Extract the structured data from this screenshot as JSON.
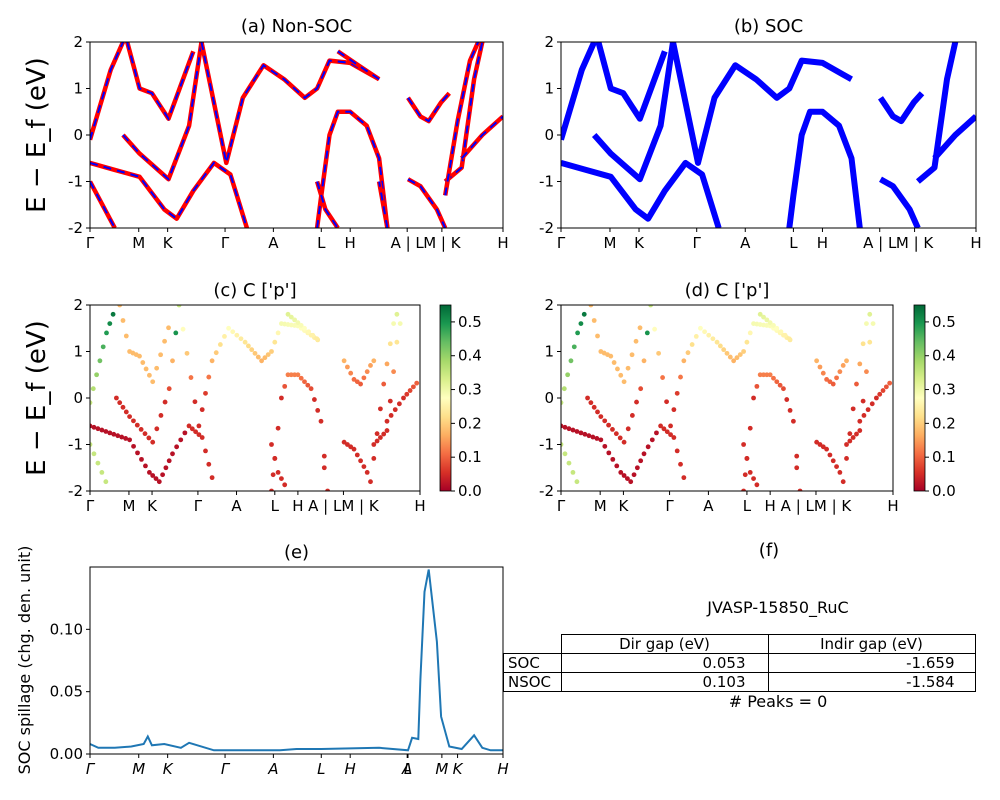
{
  "figure": {
    "ylabel_energy": "E − E_f (eV)",
    "ylabel_spillage": "SOC spillage (chg. den. unit)",
    "kpath_labels_full": [
      "Γ",
      "M",
      "K",
      "Γ",
      "A",
      "L",
      "H",
      "A | L",
      "M | K",
      "H"
    ],
    "kpath_labels_proj": [
      "Γ",
      "M",
      "K",
      "Γ",
      "A",
      "L",
      "H",
      "A | LM | K",
      "H"
    ],
    "kpath_labels_spill": [
      "Γ",
      "M",
      "K",
      "Γ",
      "A",
      "L",
      "H",
      "A",
      "L",
      "M",
      "K",
      "H"
    ]
  },
  "colors": {
    "nonsoc_line": "#ff0000",
    "nonsoc_dash": "#0000ff",
    "soc_line": "#0000ff",
    "spillage_line": "#1f77b4",
    "colormap": "RdYlGn"
  },
  "chart_data": [
    {
      "id": "a",
      "type": "line",
      "title": "(a) Non-SOC",
      "ylabel": "E − E_f (eV)",
      "ylim": [
        -2,
        2
      ],
      "yticks": [
        -2,
        -1,
        0,
        1,
        2
      ],
      "xticks": [
        "Γ",
        "M",
        "K",
        "Γ",
        "A",
        "L",
        "H",
        "A | L",
        "M | K",
        "H"
      ],
      "series": [
        {
          "values": [
            [
              0,
              -0.1
            ],
            [
              0.05,
              1.4
            ],
            [
              0.08,
              2.0
            ]
          ]
        },
        {
          "values": [
            [
              0.09,
              2.0
            ],
            [
              0.12,
              1.0
            ],
            [
              0.15,
              0.9
            ],
            [
              0.19,
              0.35
            ],
            [
              0.25,
              1.8
            ]
          ]
        },
        {
          "values": [
            [
              0,
              -0.6
            ],
            [
              0.06,
              -0.75
            ],
            [
              0.12,
              -0.9
            ],
            [
              0.18,
              -1.6
            ],
            [
              0.21,
              -1.8
            ],
            [
              0.25,
              -1.2
            ],
            [
              0.3,
              -0.6
            ],
            [
              0.34,
              -0.85
            ],
            [
              0.38,
              -2.0
            ]
          ]
        },
        {
          "values": [
            [
              0,
              -1.0
            ],
            [
              0.06,
              -2.0
            ]
          ]
        },
        {
          "values": [
            [
              0.08,
              0.0
            ],
            [
              0.12,
              -0.4
            ],
            [
              0.19,
              -0.95
            ],
            [
              0.24,
              0.2
            ],
            [
              0.27,
              2.0
            ]
          ]
        },
        {
          "values": [
            [
              0.27,
              2.0
            ],
            [
              0.33,
              -0.6
            ],
            [
              0.37,
              0.8
            ],
            [
              0.42,
              1.5
            ],
            [
              0.47,
              1.2
            ],
            [
              0.52,
              0.8
            ],
            [
              0.55,
              1.0
            ],
            [
              0.58,
              1.6
            ],
            [
              0.63,
              1.55
            ],
            [
              0.68,
              1.3
            ],
            [
              0.7,
              1.2
            ]
          ]
        },
        {
          "values": [
            [
              0.55,
              -2.0
            ],
            [
              0.56,
              -1.3
            ],
            [
              0.58,
              0.0
            ],
            [
              0.6,
              0.5
            ],
            [
              0.63,
              0.5
            ],
            [
              0.67,
              0.2
            ],
            [
              0.7,
              -0.5
            ],
            [
              0.72,
              -2.0
            ]
          ]
        },
        {
          "values": [
            [
              0.55,
              -1.0
            ],
            [
              0.57,
              -1.6
            ],
            [
              0.6,
              -2.0
            ]
          ]
        },
        {
          "values": [
            [
              0.6,
              1.8
            ],
            [
              0.65,
              1.5
            ],
            [
              0.7,
              1.2
            ]
          ]
        },
        {
          "values": [
            [
              0.72,
              -2.0
            ],
            [
              0.7,
              -1.0
            ]
          ]
        },
        {
          "values": [
            [
              0.77,
              -0.95
            ],
            [
              0.8,
              -1.1
            ],
            [
              0.84,
              -1.6
            ],
            [
              0.86,
              -2.0
            ]
          ]
        },
        {
          "values": [
            [
              0.77,
              0.8
            ],
            [
              0.8,
              0.4
            ],
            [
              0.82,
              0.3
            ],
            [
              0.85,
              0.7
            ],
            [
              0.87,
              0.9
            ]
          ]
        },
        {
          "values": [
            [
              0.86,
              -1.0
            ],
            [
              0.9,
              -0.7
            ],
            [
              0.93,
              1.2
            ],
            [
              0.95,
              2.0
            ]
          ]
        },
        {
          "values": [
            [
              0.9,
              -0.5
            ],
            [
              0.95,
              0.0
            ],
            [
              1.0,
              0.4
            ]
          ]
        },
        {
          "values": [
            [
              0.86,
              -1.3
            ],
            [
              0.89,
              0.3
            ],
            [
              0.92,
              1.6
            ],
            [
              0.94,
              2.0
            ]
          ]
        }
      ]
    },
    {
      "id": "b",
      "type": "line",
      "title": "(b) SOC",
      "ylim": [
        -2,
        2
      ],
      "yticks": [
        -2,
        -1,
        0,
        1,
        2
      ],
      "xticks": [
        "Γ",
        "M",
        "K",
        "Γ",
        "A",
        "L",
        "H",
        "A | L",
        "M | K",
        "H"
      ],
      "series": [
        {
          "values": [
            [
              0,
              -0.1
            ],
            [
              0.05,
              1.4
            ],
            [
              0.08,
              2.0
            ]
          ]
        },
        {
          "values": [
            [
              0.09,
              2.0
            ],
            [
              0.12,
              1.0
            ],
            [
              0.15,
              0.9
            ],
            [
              0.19,
              0.35
            ],
            [
              0.25,
              1.8
            ]
          ]
        },
        {
          "values": [
            [
              0,
              -0.6
            ],
            [
              0.06,
              -0.75
            ],
            [
              0.12,
              -0.9
            ],
            [
              0.18,
              -1.6
            ],
            [
              0.21,
              -1.8
            ],
            [
              0.25,
              -1.2
            ],
            [
              0.3,
              -0.6
            ],
            [
              0.34,
              -0.85
            ],
            [
              0.38,
              -2.0
            ]
          ]
        },
        {
          "values": [
            [
              0.08,
              0.0
            ],
            [
              0.12,
              -0.4
            ],
            [
              0.19,
              -0.95
            ],
            [
              0.24,
              0.2
            ],
            [
              0.27,
              2.0
            ]
          ]
        },
        {
          "values": [
            [
              0.27,
              2.0
            ],
            [
              0.33,
              -0.6
            ],
            [
              0.37,
              0.8
            ],
            [
              0.42,
              1.5
            ],
            [
              0.47,
              1.2
            ],
            [
              0.52,
              0.8
            ],
            [
              0.55,
              1.0
            ],
            [
              0.58,
              1.6
            ],
            [
              0.63,
              1.55
            ],
            [
              0.68,
              1.3
            ],
            [
              0.7,
              1.2
            ]
          ]
        },
        {
          "values": [
            [
              0.55,
              -2.0
            ],
            [
              0.56,
              -1.3
            ],
            [
              0.58,
              0.0
            ],
            [
              0.6,
              0.5
            ],
            [
              0.63,
              0.5
            ],
            [
              0.67,
              0.2
            ],
            [
              0.7,
              -0.5
            ],
            [
              0.72,
              -2.0
            ]
          ]
        },
        {
          "values": [
            [
              0.77,
              0.8
            ],
            [
              0.8,
              0.4
            ],
            [
              0.82,
              0.3
            ],
            [
              0.85,
              0.7
            ],
            [
              0.87,
              0.9
            ]
          ]
        },
        {
          "values": [
            [
              0.77,
              -0.95
            ],
            [
              0.8,
              -1.1
            ],
            [
              0.84,
              -1.6
            ],
            [
              0.86,
              -2.0
            ]
          ]
        },
        {
          "values": [
            [
              0.86,
              -1.0
            ],
            [
              0.9,
              -0.7
            ],
            [
              0.93,
              1.2
            ],
            [
              0.95,
              2.0
            ]
          ]
        },
        {
          "values": [
            [
              0.9,
              -0.5
            ],
            [
              0.95,
              0.0
            ],
            [
              1.0,
              0.4
            ]
          ]
        }
      ]
    },
    {
      "id": "c",
      "type": "scatter",
      "title": "(c)  C ['p']",
      "ylim": [
        -2,
        2
      ],
      "yticks": [
        -2,
        -1,
        0,
        1,
        2
      ],
      "colorbar": {
        "min": 0.0,
        "max": 0.55,
        "ticks": [
          0.0,
          0.1,
          0.2,
          0.3,
          0.4,
          0.5
        ],
        "cmap": "RdYlGn"
      },
      "xticks": [
        "Γ",
        "M",
        "K",
        "Γ",
        "A",
        "L",
        "H",
        "A | LM | K",
        "H"
      ]
    },
    {
      "id": "d",
      "type": "scatter",
      "title": "(d) C ['p']",
      "ylim": [
        -2,
        2
      ],
      "yticks": [
        -2,
        -1,
        0,
        1,
        2
      ],
      "colorbar": {
        "min": 0.0,
        "max": 0.55,
        "ticks": [
          0.0,
          0.1,
          0.2,
          0.3,
          0.4,
          0.5
        ],
        "cmap": "RdYlGn"
      },
      "xticks": [
        "Γ",
        "M",
        "K",
        "Γ",
        "A",
        "L",
        "H",
        "A | LM | K",
        "H"
      ]
    },
    {
      "id": "e",
      "type": "line",
      "title": "(e)",
      "ylabel": "SOC spillage (chg. den. unit)",
      "ylim": [
        0,
        0.15
      ],
      "yticks": [
        0.0,
        0.05,
        0.1
      ],
      "xticks": [
        "Γ",
        "M",
        "K",
        "Γ",
        "A",
        "L",
        "H",
        "A",
        "L",
        "M",
        "K",
        "H"
      ],
      "x": [
        0,
        0.02,
        0.06,
        0.1,
        0.13,
        0.14,
        0.15,
        0.18,
        0.22,
        0.24,
        0.3,
        0.38,
        0.46,
        0.5,
        0.56,
        0.7,
        0.77,
        0.78,
        0.795,
        0.8,
        0.81,
        0.82,
        0.84,
        0.85,
        0.87,
        0.9,
        0.93,
        0.95,
        0.97,
        1.0
      ],
      "values": [
        0.008,
        0.005,
        0.005,
        0.006,
        0.008,
        0.014,
        0.007,
        0.008,
        0.005,
        0.009,
        0.003,
        0.003,
        0.003,
        0.004,
        0.004,
        0.005,
        0.003,
        0.013,
        0.012,
        0.06,
        0.13,
        0.148,
        0.09,
        0.03,
        0.006,
        0.004,
        0.015,
        0.005,
        0.003,
        0.003
      ]
    }
  ],
  "table": {
    "title": "JVASP-15850_RuC",
    "headers": [
      "",
      "Dir gap (eV)",
      "Indir gap (eV)"
    ],
    "rows": [
      [
        "SOC",
        "0.053",
        "-1.659"
      ],
      [
        "NSOC",
        "0.103",
        "-1.584"
      ]
    ],
    "peaks": "# Peaks = 0",
    "panel_title": "(f)"
  }
}
